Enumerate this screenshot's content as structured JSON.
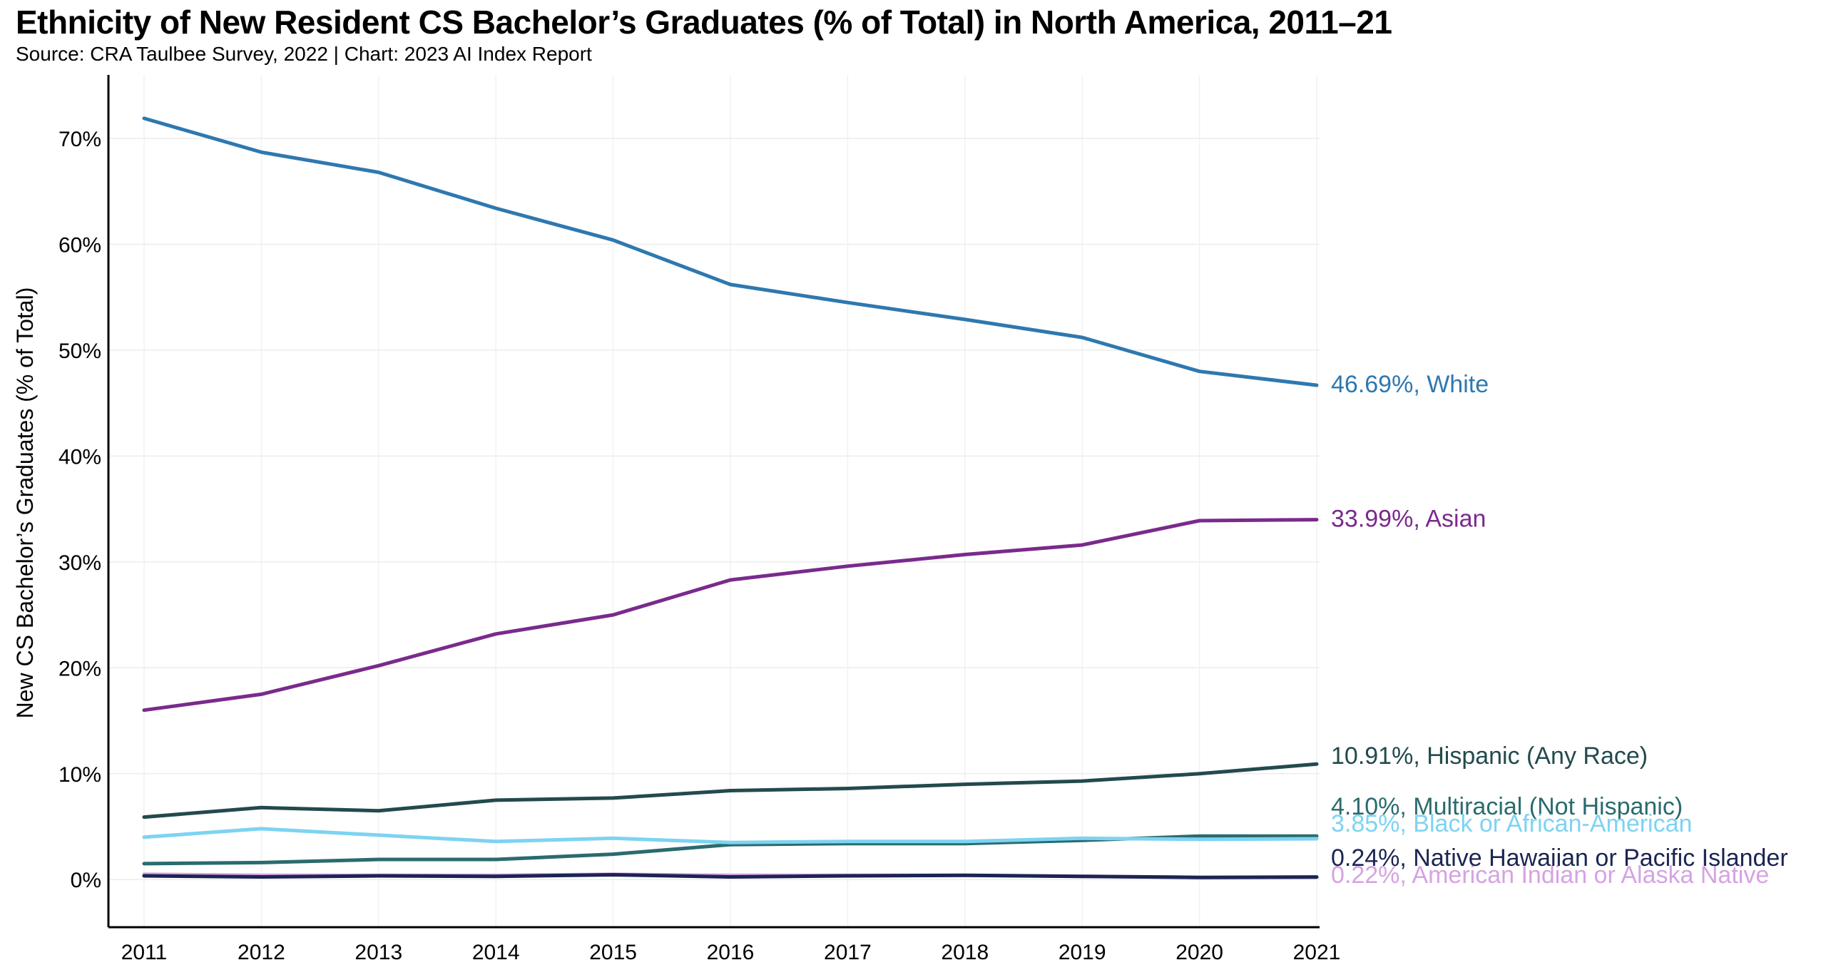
{
  "chart_data": {
    "type": "line",
    "title": "Ethnicity of New Resident CS Bachelor’s Graduates (% of Total) in North America, 2011–21",
    "subtitle": "Source: CRA Taulbee Survey, 2022 | Chart: 2023 AI Index Report",
    "xlabel": "",
    "ylabel": "New CS Bachelor’s Graduates (% of Total)",
    "x": [
      2011,
      2012,
      2013,
      2014,
      2015,
      2016,
      2017,
      2018,
      2019,
      2020,
      2021
    ],
    "x_tick_labels": [
      "2011",
      "2012",
      "2013",
      "2014",
      "2015",
      "2016",
      "2017",
      "2018",
      "2019",
      "2020",
      "2021"
    ],
    "ylim": [
      -4.5,
      76
    ],
    "y_ticks": [
      0,
      10,
      20,
      30,
      40,
      50,
      60,
      70
    ],
    "y_tick_labels": [
      "0%",
      "10%",
      "20%",
      "30%",
      "40%",
      "50%",
      "60%",
      "70%"
    ],
    "grid": true,
    "legend": "end-of-line labels (right)",
    "series": [
      {
        "name": "White",
        "color": "#2e78b0",
        "values": [
          71.9,
          68.7,
          66.8,
          63.4,
          60.4,
          56.2,
          54.5,
          52.9,
          51.2,
          48.0,
          46.69
        ],
        "end_label": "46.69%, White",
        "label_offset": 0
      },
      {
        "name": "Asian",
        "color": "#7a2a8c",
        "values": [
          16.0,
          17.5,
          20.2,
          23.2,
          25.0,
          28.3,
          29.6,
          30.7,
          31.6,
          33.9,
          33.99
        ],
        "end_label": "33.99%, Asian",
        "label_offset": 0
      },
      {
        "name": "Hispanic (Any Race)",
        "color": "#234a4d",
        "values": [
          5.9,
          6.8,
          6.5,
          7.5,
          7.7,
          8.4,
          8.6,
          9.0,
          9.3,
          10.0,
          10.91
        ],
        "end_label": "10.91%, Hispanic (Any Race)",
        "label_offset": 0
      },
      {
        "name": "Multiracial (Not Hispanic)",
        "color": "#2a6b6e",
        "values": [
          1.5,
          1.6,
          1.9,
          1.9,
          2.4,
          3.3,
          3.4,
          3.4,
          3.7,
          4.1,
          4.1
        ],
        "end_label": "4.10%, Multiracial (Not Hispanic)",
        "label_offset": 24
      },
      {
        "name": "Black or African-American",
        "color": "#7dd3f2",
        "values": [
          4.0,
          4.8,
          4.2,
          3.6,
          3.9,
          3.5,
          3.6,
          3.6,
          3.9,
          3.8,
          3.85
        ],
        "end_label": "3.85%, Black or African-American",
        "label_offset": 48
      },
      {
        "name": "American Indian or Alaska Native",
        "color": "#d6a3e3",
        "values": [
          0.5,
          0.4,
          0.4,
          0.4,
          0.5,
          0.4,
          0.4,
          0.4,
          0.3,
          0.2,
          0.22
        ],
        "end_label": "0.22%, American Indian or Alaska Native",
        "label_offset": 120
      },
      {
        "name": "Native Hawaiian or Pacific Islander",
        "color": "#1c2452",
        "values": [
          0.35,
          0.25,
          0.35,
          0.3,
          0.45,
          0.25,
          0.35,
          0.4,
          0.3,
          0.2,
          0.24
        ],
        "end_label": "0.24%, Native Hawaiian or Pacific Islander",
        "label_offset": 96
      }
    ]
  }
}
